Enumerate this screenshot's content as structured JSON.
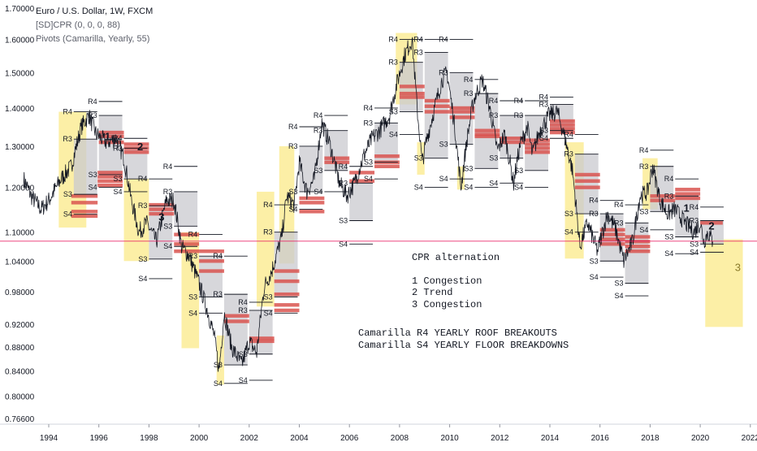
{
  "header": {
    "symbol_line": "Euro / U.S. Dollar, 1W, FXCM",
    "indicator_1": "[SD]CPR (0, 0, 0, 88)",
    "indicator_2": "Pivots (Camarilla, Yearly, 55)"
  },
  "annotations": {
    "title": "CPR alternation",
    "item1": "1 Congestion",
    "item2": "2 Trend",
    "item3": "3 Congestion",
    "r4_note": "Camarilla R4 YEARLY ROOF BREAKOUTS",
    "s4_note": "Camarilla S4 YEARLY FLOOR BREAKDOWNS"
  },
  "colors": {
    "price": "#131722",
    "camarilla_box": "#c9cacf",
    "highlight": "#fbec96",
    "cpr_band": "#d9534f",
    "current_price_line": "#e91e63",
    "axis_text": "#131722"
  },
  "chart_data": {
    "type": "line",
    "title": "Euro / U.S. Dollar, 1W, FXCM",
    "xlabel": "",
    "ylabel": "",
    "y_scale": "log",
    "ylim": [
      0.7599,
      1.7
    ],
    "xlim": [
      1993.0,
      2022.6
    ],
    "x_ticks": [
      "1994",
      "1996",
      "1998",
      "2000",
      "2002",
      "2004",
      "2006",
      "2008",
      "2010",
      "2012",
      "2014",
      "2016",
      "2018",
      "2020",
      "2022"
    ],
    "y_ticks": [
      "1.70000",
      "1.60000",
      "1.50000",
      "1.40000",
      "1.30000",
      "1.20000",
      "1.10000",
      "1.04000",
      "0.98000",
      "0.92000",
      "0.88000",
      "0.84000",
      "0.80000",
      "0.76600"
    ],
    "current_price_line": 1.081,
    "price_series": {
      "name": "EURUSD",
      "points": [
        [
          1993.0,
          1.22
        ],
        [
          1993.3,
          1.18
        ],
        [
          1993.7,
          1.15
        ],
        [
          1994.0,
          1.17
        ],
        [
          1994.5,
          1.22
        ],
        [
          1994.9,
          1.25
        ],
        [
          1995.3,
          1.35
        ],
        [
          1995.6,
          1.38
        ],
        [
          1995.9,
          1.33
        ],
        [
          1996.3,
          1.31
        ],
        [
          1996.7,
          1.32
        ],
        [
          1997.0,
          1.27
        ],
        [
          1997.3,
          1.17
        ],
        [
          1997.6,
          1.1
        ],
        [
          1997.9,
          1.12
        ],
        [
          1998.3,
          1.08
        ],
        [
          1998.7,
          1.17
        ],
        [
          1999.0,
          1.17
        ],
        [
          1999.3,
          1.07
        ],
        [
          1999.6,
          1.05
        ],
        [
          1999.9,
          1.01
        ],
        [
          2000.3,
          0.95
        ],
        [
          2000.6,
          0.9
        ],
        [
          2000.8,
          0.84
        ],
        [
          2001.0,
          0.94
        ],
        [
          2001.3,
          0.88
        ],
        [
          2001.7,
          0.85
        ],
        [
          2002.0,
          0.89
        ],
        [
          2002.3,
          0.87
        ],
        [
          2002.6,
          0.99
        ],
        [
          2002.9,
          1.02
        ],
        [
          2003.3,
          1.09
        ],
        [
          2003.5,
          1.18
        ],
        [
          2003.8,
          1.16
        ],
        [
          2004.0,
          1.26
        ],
        [
          2004.3,
          1.19
        ],
        [
          2004.6,
          1.22
        ],
        [
          2004.9,
          1.36
        ],
        [
          2005.2,
          1.31
        ],
        [
          2005.6,
          1.21
        ],
        [
          2005.9,
          1.18
        ],
        [
          2006.2,
          1.21
        ],
        [
          2006.6,
          1.28
        ],
        [
          2006.9,
          1.32
        ],
        [
          2007.2,
          1.34
        ],
        [
          2007.6,
          1.38
        ],
        [
          2007.9,
          1.47
        ],
        [
          2008.2,
          1.55
        ],
        [
          2008.5,
          1.6
        ],
        [
          2008.7,
          1.4
        ],
        [
          2008.9,
          1.26
        ],
        [
          2009.1,
          1.32
        ],
        [
          2009.4,
          1.4
        ],
        [
          2009.7,
          1.48
        ],
        [
          2009.9,
          1.5
        ],
        [
          2010.2,
          1.35
        ],
        [
          2010.45,
          1.2
        ],
        [
          2010.7,
          1.32
        ],
        [
          2010.95,
          1.42
        ],
        [
          2011.3,
          1.48
        ],
        [
          2011.6,
          1.4
        ],
        [
          2011.9,
          1.29
        ],
        [
          2012.2,
          1.33
        ],
        [
          2012.55,
          1.21
        ],
        [
          2012.8,
          1.3
        ],
        [
          2013.1,
          1.35
        ],
        [
          2013.3,
          1.28
        ],
        [
          2013.6,
          1.34
        ],
        [
          2013.95,
          1.38
        ],
        [
          2014.3,
          1.39
        ],
        [
          2014.6,
          1.32
        ],
        [
          2014.9,
          1.24
        ],
        [
          2015.2,
          1.07
        ],
        [
          2015.5,
          1.12
        ],
        [
          2015.9,
          1.06
        ],
        [
          2016.3,
          1.14
        ],
        [
          2016.6,
          1.11
        ],
        [
          2016.95,
          1.04
        ],
        [
          2017.3,
          1.08
        ],
        [
          2017.6,
          1.18
        ],
        [
          2017.9,
          1.19
        ],
        [
          2018.1,
          1.25
        ],
        [
          2018.4,
          1.17
        ],
        [
          2018.7,
          1.14
        ],
        [
          2019.0,
          1.15
        ],
        [
          2019.4,
          1.12
        ],
        [
          2019.75,
          1.1
        ],
        [
          2020.0,
          1.12
        ],
        [
          2020.15,
          1.08
        ],
        [
          2020.3,
          1.1
        ],
        [
          2020.5,
          1.08
        ]
      ]
    },
    "camarilla_yearly": [
      {
        "year": 1995,
        "R4": 1.39,
        "R3": 1.318,
        "S3": 1.184,
        "S4": 1.139
      },
      {
        "year": 1996,
        "R4": 1.418,
        "R3": 1.38,
        "S3": 1.23,
        "S4": 1.2
      },
      {
        "year": 1997,
        "R4": 1.32,
        "R3": 1.295,
        "S3": 1.22,
        "S4": 1.19
      },
      {
        "year": 1998,
        "R4": 1.22,
        "R3": 1.158,
        "S3": 1.044,
        "S4": 1.005
      },
      {
        "year": 1999,
        "R4": 1.25,
        "R3": 1.19,
        "S3": 1.113,
        "S4": 1.07
      },
      {
        "year": 2000,
        "R4": 1.095,
        "R3": 1.05,
        "S3": 0.97,
        "S4": 0.94
      },
      {
        "year": 2001,
        "R4": 1.05,
        "R3": 0.975,
        "S3": 0.85,
        "S4": 0.82
      },
      {
        "year": 2002,
        "R4": 0.96,
        "R3": 0.945,
        "S3": 0.868,
        "S4": 0.825
      },
      {
        "year": 2003,
        "R4": 1.16,
        "R3": 1.1,
        "S3": 0.97,
        "S4": 0.94
      },
      {
        "year": 2004,
        "R4": 1.35,
        "R3": 1.3,
        "S3": 1.19,
        "S4": 1.15
      },
      {
        "year": 2005,
        "R4": 1.38,
        "R3": 1.34,
        "S3": 1.24,
        "S4": 1.19
      },
      {
        "year": 2006,
        "R4": 1.25,
        "R3": 1.21,
        "S3": 1.125,
        "S4": 1.075
      },
      {
        "year": 2007,
        "R4": 1.4,
        "R3": 1.36,
        "S3": 1.26,
        "S4": 1.22
      },
      {
        "year": 2008,
        "R4": 1.6,
        "R3": 1.53,
        "S3": 1.39,
        "S4": 1.33
      },
      {
        "year": 2009,
        "R4": 1.6,
        "R3": 1.56,
        "S3": 1.27,
        "S4": 1.2
      },
      {
        "year": 2010,
        "R4": 1.6,
        "R3": 1.5,
        "S3": 1.305,
        "S4": 1.22
      },
      {
        "year": 2011,
        "R4": 1.48,
        "R3": 1.44,
        "S3": 1.245,
        "S4": 1.2
      },
      {
        "year": 2012,
        "R4": 1.42,
        "R3": 1.38,
        "S3": 1.27,
        "S4": 1.21
      },
      {
        "year": 2013,
        "R4": 1.42,
        "R3": 1.38,
        "S3": 1.24,
        "S4": 1.2
      },
      {
        "year": 2014,
        "R4": 1.43,
        "R3": 1.41,
        "S3": 1.34,
        "S4": 1.32
      },
      {
        "year": 2015,
        "R4": 1.33,
        "R3": 1.28,
        "S3": 1.14,
        "S4": 1.1
      },
      {
        "year": 2016,
        "R4": 1.17,
        "R3": 1.14,
        "S3": 1.04,
        "S4": 1.008
      },
      {
        "year": 2017,
        "R4": 1.16,
        "R3": 1.12,
        "S3": 0.996,
        "S4": 0.972
      },
      {
        "year": 2018,
        "R4": 1.29,
        "R3": 1.25,
        "S3": 1.145,
        "S4": 1.105
      },
      {
        "year": 2019,
        "R4": 1.22,
        "R3": 1.18,
        "S3": 1.09,
        "S4": 1.055
      },
      {
        "year": 2020,
        "R4": 1.155,
        "R3": 1.125,
        "S3": 1.075,
        "S4": 1.058
      }
    ],
    "highlight_zones": [
      {
        "x": [
          1994.4,
          1995.5
        ],
        "y": [
          1.11,
          1.39
        ]
      },
      {
        "x": [
          1997.0,
          1998.0
        ],
        "y": [
          1.04,
          1.22
        ]
      },
      {
        "x": [
          1999.3,
          2000.0
        ],
        "y": [
          0.878,
          1.1
        ]
      },
      {
        "x": [
          2000.7,
          2001.0
        ],
        "y": [
          0.818,
          0.9
        ]
      },
      {
        "x": [
          2002.3,
          2003.0
        ],
        "y": [
          0.952,
          1.19
        ]
      },
      {
        "x": [
          2003.2,
          2003.8
        ],
        "y": [
          1.035,
          1.3
        ]
      },
      {
        "x": [
          2007.85,
          2008.7
        ],
        "y": [
          1.41,
          1.62
        ]
      },
      {
        "x": [
          2008.7,
          2009.0
        ],
        "y": [
          1.23,
          1.31
        ]
      },
      {
        "x": [
          2010.3,
          2010.6
        ],
        "y": [
          1.195,
          1.25
        ]
      },
      {
        "x": [
          2014.6,
          2015.35
        ],
        "y": [
          1.045,
          1.31
        ]
      },
      {
        "x": [
          2017.7,
          2018.3
        ],
        "y": [
          1.15,
          1.27
        ]
      },
      {
        "x": [
          2020.2,
          2021.7
        ],
        "y": [
          0.915,
          1.085
        ]
      }
    ],
    "cpr_bands": [
      {
        "x": [
          1994.9,
          1995.95
        ],
        "levels": [
          1.18,
          1.165,
          1.145,
          1.135
        ]
      },
      {
        "x": [
          1995.95,
          1996.95
        ],
        "levels": [
          1.235,
          1.225,
          1.215,
          1.205
        ]
      },
      {
        "x": [
          1996.0,
          1997.0
        ],
        "levels": [
          1.335,
          1.325,
          1.31
        ]
      },
      {
        "x": [
          1997.0,
          1998.0
        ],
        "levels": [
          1.305,
          1.295,
          1.285
        ]
      },
      {
        "x": [
          1998.0,
          1999.0
        ],
        "levels": [
          1.16,
          1.15,
          1.14
        ]
      },
      {
        "x": [
          1999.0,
          2000.0
        ],
        "levels": [
          1.095,
          1.075,
          1.06
        ]
      },
      {
        "x": [
          2000.0,
          2001.0
        ],
        "levels": [
          1.06,
          1.04,
          1.02
        ]
      },
      {
        "x": [
          2001.0,
          2002.0
        ],
        "levels": [
          0.935,
          0.925
        ]
      },
      {
        "x": [
          2002.0,
          2003.0
        ],
        "levels": [
          0.895,
          0.89
        ]
      },
      {
        "x": [
          2003.0,
          2004.0
        ],
        "levels": [
          1.02,
          1.0,
          0.975,
          0.955,
          0.945
        ]
      },
      {
        "x": [
          2004.0,
          2005.0
        ],
        "levels": [
          1.175,
          1.165,
          1.145
        ]
      },
      {
        "x": [
          2005.0,
          2006.0
        ],
        "levels": [
          1.27,
          1.26
        ]
      },
      {
        "x": [
          2006.0,
          2007.0
        ],
        "levels": [
          1.235,
          1.215
        ]
      },
      {
        "x": [
          2007.0,
          2008.0
        ],
        "levels": [
          1.275,
          1.26,
          1.25
        ]
      },
      {
        "x": [
          2008.0,
          2009.0
        ],
        "levels": [
          1.46,
          1.44,
          1.43
        ]
      },
      {
        "x": [
          2009.0,
          2010.0
        ],
        "levels": [
          1.42,
          1.405,
          1.39
        ]
      },
      {
        "x": [
          2010.0,
          2011.0
        ],
        "levels": [
          1.4,
          1.39,
          1.375
        ]
      },
      {
        "x": [
          2011.0,
          2012.0
        ],
        "levels": [
          1.34,
          1.33,
          1.325
        ]
      },
      {
        "x": [
          2012.0,
          2013.0
        ],
        "levels": [
          1.32,
          1.31
        ]
      },
      {
        "x": [
          2013.0,
          2014.0
        ],
        "levels": [
          1.315,
          1.305,
          1.295,
          1.285
        ]
      },
      {
        "x": [
          2014.0,
          2015.0
        ],
        "levels": [
          1.365,
          1.355,
          1.345,
          1.335
        ]
      },
      {
        "x": [
          2015.0,
          2016.0
        ],
        "levels": [
          1.23,
          1.215,
          1.2
        ]
      },
      {
        "x": [
          2016.0,
          2017.0
        ],
        "levels": [
          1.105,
          1.095,
          1.085,
          1.075
        ]
      },
      {
        "x": [
          2017.0,
          2018.0
        ],
        "levels": [
          1.09,
          1.08,
          1.07,
          1.06
        ]
      },
      {
        "x": [
          2018.0,
          2019.0
        ],
        "levels": [
          1.18,
          1.17
        ]
      },
      {
        "x": [
          2019.0,
          2020.0
        ],
        "levels": [
          1.195,
          1.185,
          1.175
        ]
      },
      {
        "x": [
          2020.0,
          2020.9
        ],
        "levels": [
          1.12
        ]
      }
    ],
    "cycle_labels": [
      {
        "text": "1",
        "x": 1996.35,
        "y": 1.315
      },
      {
        "text": "2",
        "x": 1997.65,
        "y": 1.29
      },
      {
        "text": "3",
        "x": 1998.5,
        "y": 1.125
      },
      {
        "text": "1",
        "x": 2019.45,
        "y": 1.145
      },
      {
        "text": "2",
        "x": 2020.45,
        "y": 1.106
      },
      {
        "text": "3",
        "x": 2021.5,
        "y": 1.02
      }
    ]
  }
}
